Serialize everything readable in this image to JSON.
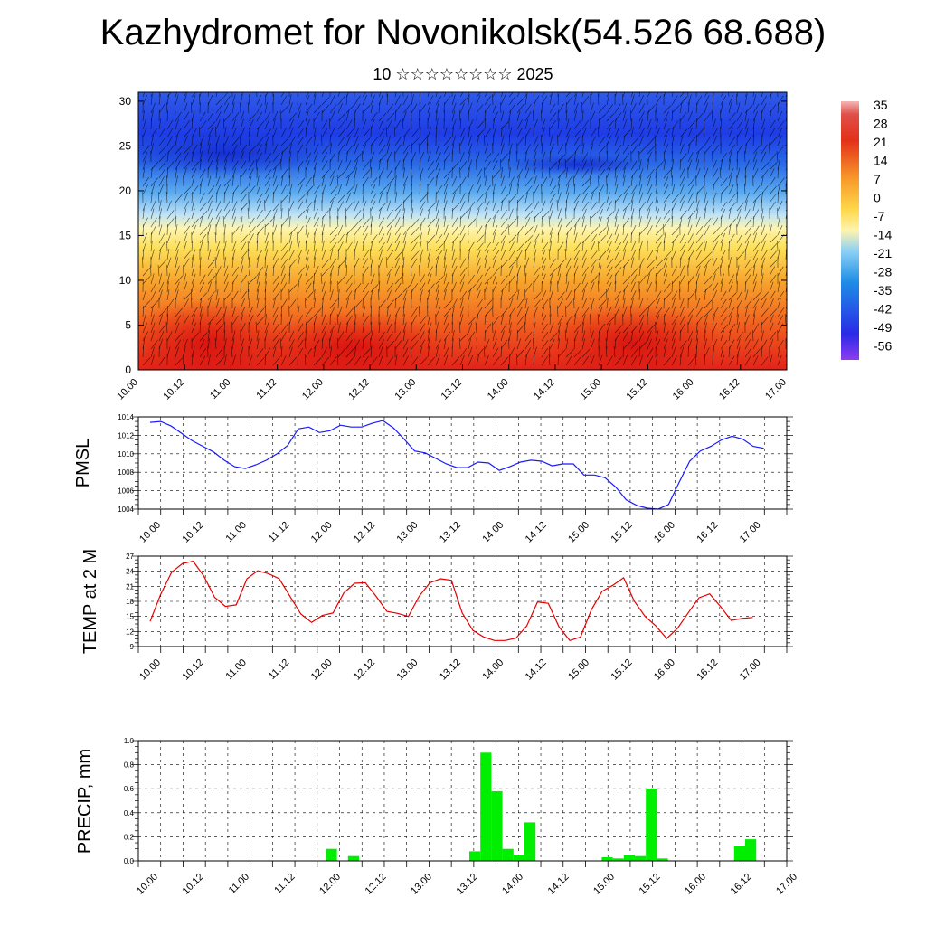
{
  "header": {
    "title": "Kazhydromet for Novonikolsk(54.526 68.688)",
    "subtitle": "10 ☆☆☆☆☆☆☆☆ 2025"
  },
  "colors": {
    "pmsl_line": "#1a1aff",
    "temp_line": "#e60000",
    "precip_bar": "#00ee00",
    "cross_section_warm": "#e32219",
    "cross_section_mid": "#ffe45c",
    "cross_section_cold": "#1e3ce6"
  },
  "chart_data": [
    {
      "type": "heatmap",
      "name": "vertical cross-section (temperature with wind barbs)",
      "x_tick_labels": [
        "10.00",
        "10.12",
        "11.00",
        "11.12",
        "12.00",
        "12.12",
        "13.00",
        "13.12",
        "14.00",
        "14.12",
        "15.00",
        "15.12",
        "16.00",
        "16.12",
        "17.00"
      ],
      "y_ticks": [
        0,
        5,
        10,
        15,
        20,
        25,
        30
      ],
      "ylim": [
        0,
        31
      ],
      "colorbar_labels": [
        "35",
        "28",
        "21",
        "14",
        "7",
        "0",
        "-7",
        "-14",
        "-21",
        "-28",
        "-35",
        "-42",
        "-49",
        "-56"
      ]
    },
    {
      "type": "line",
      "ylabel": "PMSL",
      "x_tick_labels": [
        "10.00",
        "10.12",
        "11.00",
        "11.12",
        "12.00",
        "12.12",
        "13.00",
        "13.12",
        "14.00",
        "14.12",
        "15.00",
        "15.12",
        "16.00",
        "16.12",
        "17.00"
      ],
      "y_ticks": [
        1004,
        1006,
        1008,
        1010,
        1012,
        1014
      ],
      "ylim": [
        1004,
        1014
      ],
      "grid": true,
      "values": [
        1013.4,
        1013.5,
        1013.0,
        1012.2,
        1011.4,
        1010.8,
        1010.2,
        1009.3,
        1008.6,
        1008.4,
        1008.8,
        1009.3,
        1010.0,
        1010.9,
        1012.7,
        1012.9,
        1012.3,
        1012.5,
        1013.1,
        1012.9,
        1012.9,
        1013.3,
        1013.6,
        1012.8,
        1011.6,
        1010.3,
        1010.1,
        1009.5,
        1008.9,
        1008.5,
        1008.5,
        1009.1,
        1009.0,
        1008.2,
        1008.6,
        1009.1,
        1009.3,
        1009.2,
        1008.7,
        1008.9,
        1008.9,
        1007.7,
        1007.7,
        1007.4,
        1006.4,
        1005.0,
        1004.4,
        1004.1,
        1004.0,
        1004.5,
        1006.9,
        1009.2,
        1010.3,
        1010.8,
        1011.5,
        1011.9,
        1011.6,
        1010.8,
        1010.6
      ]
    },
    {
      "type": "line",
      "ylabel": "TEMP at 2 M",
      "x_tick_labels": [
        "10.00",
        "10.12",
        "11.00",
        "11.12",
        "12.00",
        "12.12",
        "13.00",
        "13.12",
        "14.00",
        "14.12",
        "15.00",
        "15.12",
        "16.00",
        "16.12",
        "17.00"
      ],
      "y_ticks": [
        9,
        12,
        15,
        18,
        21,
        24,
        27
      ],
      "ylim": [
        9,
        27
      ],
      "grid": true,
      "values": [
        14.0,
        19.5,
        23.8,
        25.5,
        26.0,
        23.0,
        18.8,
        17.0,
        17.3,
        22.5,
        24.1,
        23.5,
        22.5,
        19.0,
        15.5,
        13.8,
        15.2,
        15.7,
        19.7,
        21.6,
        21.7,
        19.0,
        16.0,
        15.6,
        15.0,
        19.0,
        21.7,
        22.5,
        22.2,
        15.7,
        12.2,
        10.9,
        10.2,
        10.2,
        10.7,
        13.1,
        17.9,
        17.6,
        12.9,
        10.2,
        10.9,
        16.3,
        20.0,
        21.2,
        22.7,
        18.0,
        15.0,
        13.1,
        10.6,
        12.6,
        15.7,
        18.7,
        19.5,
        17.0,
        14.2,
        14.6,
        14.8
      ]
    },
    {
      "type": "bar",
      "ylabel": "PRECIP, mm",
      "x_tick_labels": [
        "10.00",
        "10.12",
        "11.00",
        "11.12",
        "12.00",
        "12.12",
        "13.00",
        "13.12",
        "14.00",
        "14.12",
        "15.00",
        "15.12",
        "16.00",
        "16.12",
        "17.00"
      ],
      "y_ticks": [
        "0.0",
        "0.2",
        "0.4",
        "0.6",
        "0.8",
        "1.0"
      ],
      "ylim": [
        0,
        1
      ],
      "grid": true,
      "bars": [
        {
          "t": 17,
          "value": 0.1
        },
        {
          "t": 19,
          "value": 0.04
        },
        {
          "t": 30,
          "value": 0.08
        },
        {
          "t": 31,
          "value": 0.9
        },
        {
          "t": 32,
          "value": 0.58
        },
        {
          "t": 33,
          "value": 0.1
        },
        {
          "t": 34,
          "value": 0.05
        },
        {
          "t": 35,
          "value": 0.32
        },
        {
          "t": 42,
          "value": 0.03
        },
        {
          "t": 43,
          "value": 0.02
        },
        {
          "t": 44,
          "value": 0.05
        },
        {
          "t": 45,
          "value": 0.04
        },
        {
          "t": 46,
          "value": 0.6
        },
        {
          "t": 47,
          "value": 0.02
        },
        {
          "t": 54,
          "value": 0.12
        },
        {
          "t": 55,
          "value": 0.18
        }
      ]
    }
  ]
}
